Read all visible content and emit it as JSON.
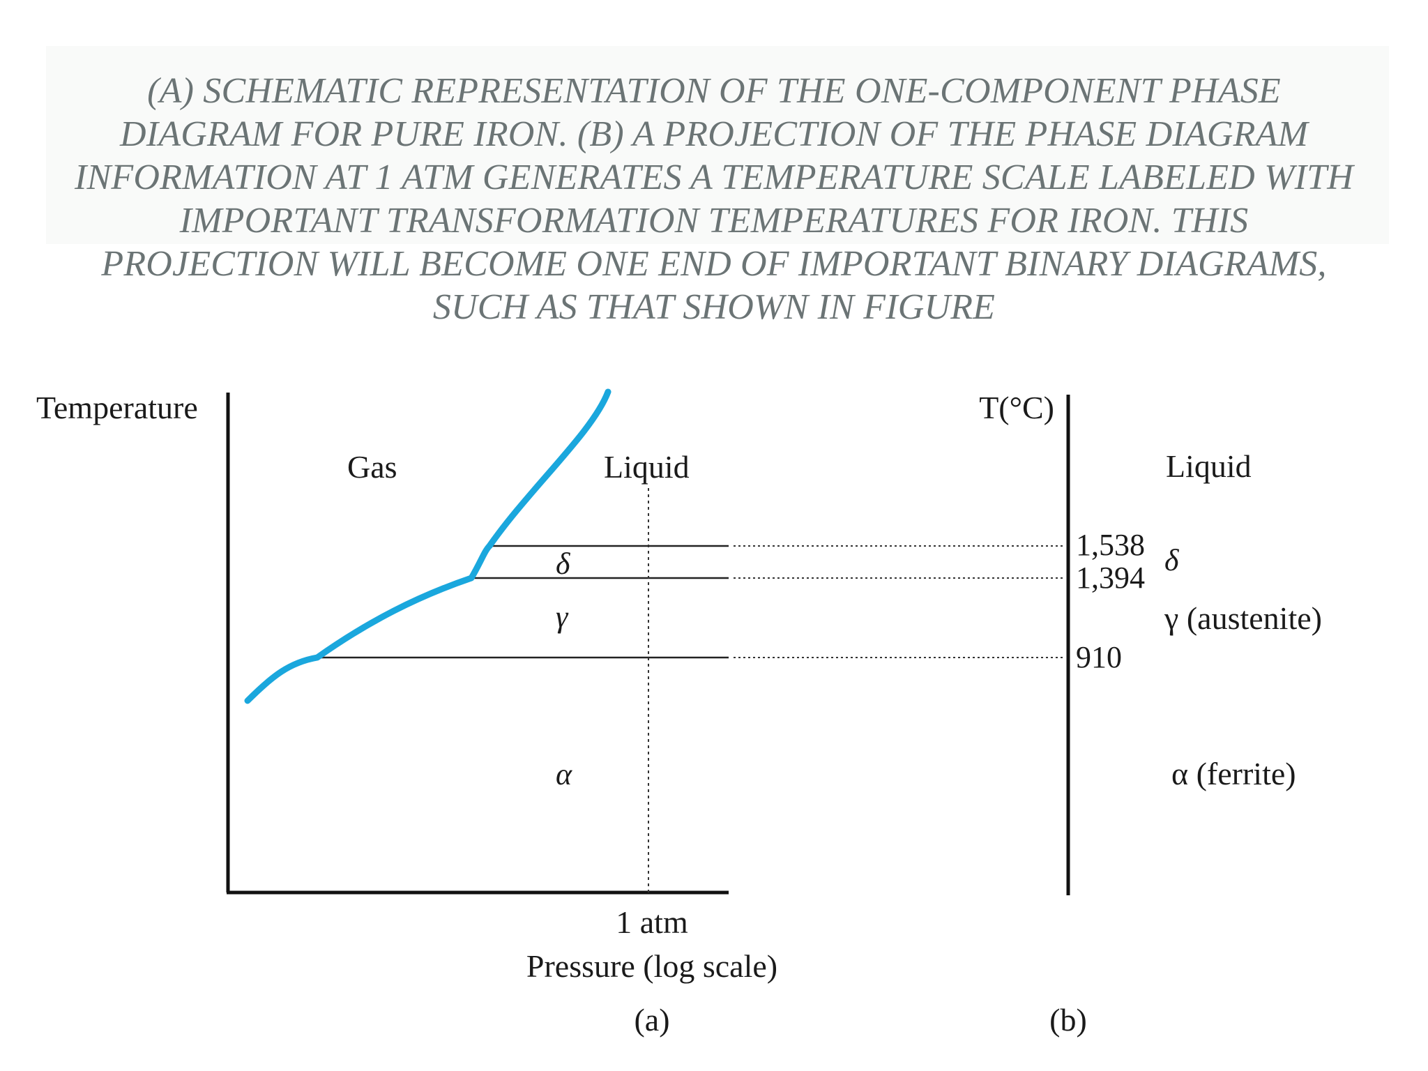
{
  "caption": "(A) SCHEMATIC REPRESENTATION OF THE ONE-COMPONENT PHASE DIAGRAM FOR PURE IRON. (B) A PROJECTION OF THE PHASE DIAGRAM INFORMATION AT 1 ATM GENERATES A TEMPERATURE SCALE LABELED WITH IMPORTANT TRANSFORMATION TEMPERATURES FOR IRON. THIS PROJECTION WILL BECOME ONE END OF IMPORTANT BINARY DIAGRAMS, SUCH AS THAT SHOWN IN FIGURE",
  "panel_a": {
    "y_axis_label": "Temperature",
    "x_axis_label": "Pressure (log scale)",
    "pressure_marker": "1 atm",
    "panel_label": "(a)",
    "regions": {
      "gas": "Gas",
      "liquid": "Liquid",
      "delta": "δ",
      "gamma": "γ",
      "alpha": "α"
    },
    "curve_color": "#1aa7dd"
  },
  "panel_b": {
    "axis_label": "T(°C)",
    "panel_label": "(b)",
    "temperatures": [
      "1,538",
      "1,394",
      "910"
    ],
    "phases": {
      "liquid": "Liquid",
      "delta": "δ",
      "gamma": "γ (austenite)",
      "alpha": "α (ferrite)"
    }
  }
}
